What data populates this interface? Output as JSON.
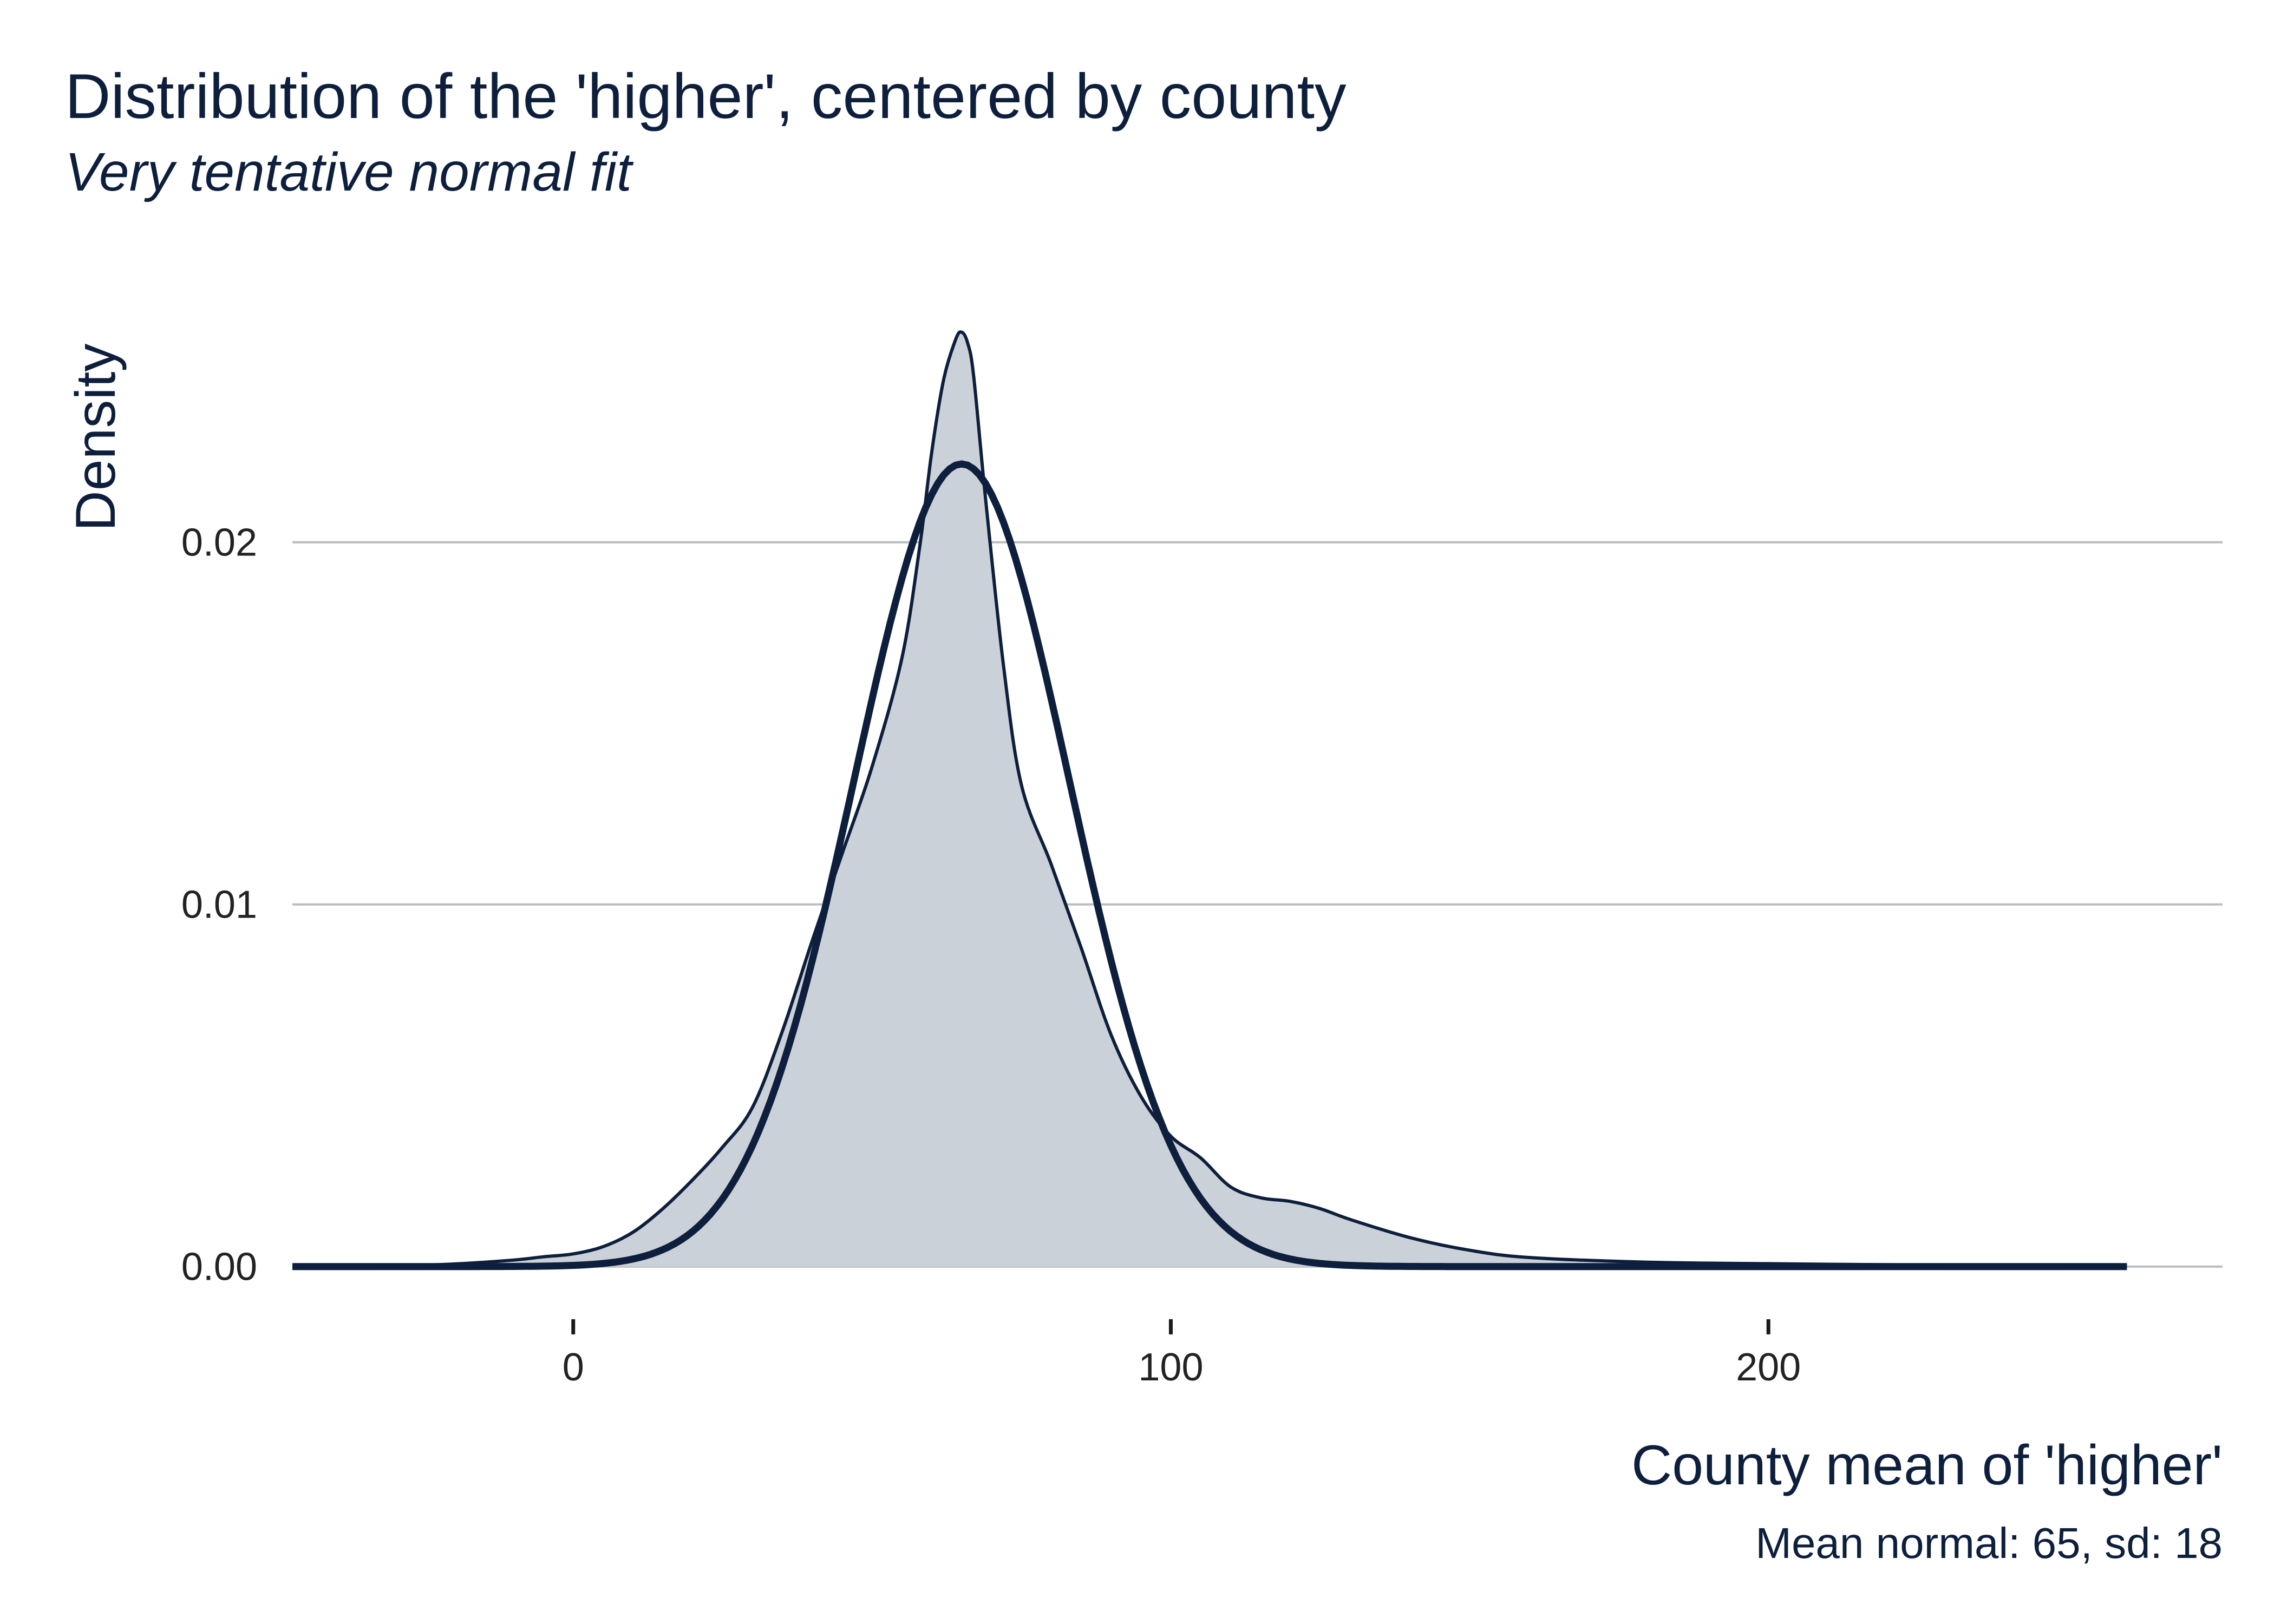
{
  "chart_data": {
    "type": "area",
    "title": "Distribution of the 'higher', centered by county",
    "subtitle": "Very tentative normal fit",
    "xlabel": "County mean of 'higher'",
    "ylabel": "Density",
    "caption": "Mean normal: 65, sd: 18",
    "xlim": [
      -47,
      276
    ],
    "ylim": [
      -0.0012,
      0.0272
    ],
    "x_ticks": [
      0,
      100,
      200
    ],
    "x_tick_labels": [
      "0",
      "100",
      "200"
    ],
    "y_ticks": [
      0,
      0.01,
      0.02
    ],
    "y_tick_labels": [
      "0.00",
      "0.01",
      "0.02"
    ],
    "grid": "horizontal major lines",
    "colors": {
      "line": "#0d1f3c",
      "fill": "#cbd1d9",
      "grid": "#b9bcc1"
    },
    "series": [
      {
        "kind": "empirical-density",
        "x": [
          -47,
          -40,
          -30,
          -20,
          -10,
          -5,
          0,
          5,
          10,
          15,
          20,
          25,
          30,
          35,
          40,
          45,
          50,
          55,
          58,
          60,
          62,
          64,
          65,
          66,
          67,
          69,
          72,
          75,
          80,
          85,
          90,
          95,
          100,
          105,
          110,
          115,
          120,
          125,
          130,
          140,
          150,
          160,
          180,
          200,
          220,
          240,
          260
        ],
        "y": [
          0,
          0,
          2e-05,
          7e-05,
          0.00018,
          0.00027,
          0.00035,
          0.00055,
          0.00095,
          0.0016,
          0.0024,
          0.0033,
          0.0044,
          0.0065,
          0.009,
          0.0114,
          0.0138,
          0.0168,
          0.0199,
          0.0225,
          0.0245,
          0.0256,
          0.0258,
          0.0255,
          0.0246,
          0.0212,
          0.0166,
          0.0133,
          0.0111,
          0.0088,
          0.0064,
          0.0047,
          0.0036,
          0.003,
          0.0022,
          0.0019,
          0.0018,
          0.0016,
          0.0013,
          0.0008,
          0.00045,
          0.00025,
          0.00012,
          8e-05,
          5e-05,
          3e-05,
          2e-05
        ]
      },
      {
        "kind": "normal-fit",
        "mean": 65,
        "sd": 18,
        "x_range": [
          -47,
          260
        ]
      }
    ]
  }
}
